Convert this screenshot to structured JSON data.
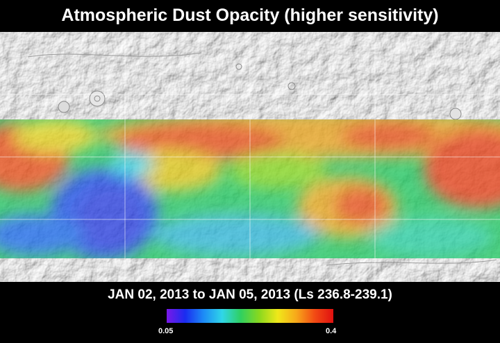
{
  "title": "Atmospheric Dust Opacity (higher sensitivity)",
  "date_range": "JAN 02, 2013 to JAN 05, 2013 (Ls 236.8-239.1)",
  "scale": {
    "min_label": "0.05",
    "max_label": "0.4",
    "colors": [
      "#7a18e8",
      "#1a2cf0",
      "#1d8cf6",
      "#30d6e8",
      "#2fd060",
      "#8ad81e",
      "#f0e81a",
      "#f7a81a",
      "#f24a14",
      "#e01010"
    ]
  }
}
